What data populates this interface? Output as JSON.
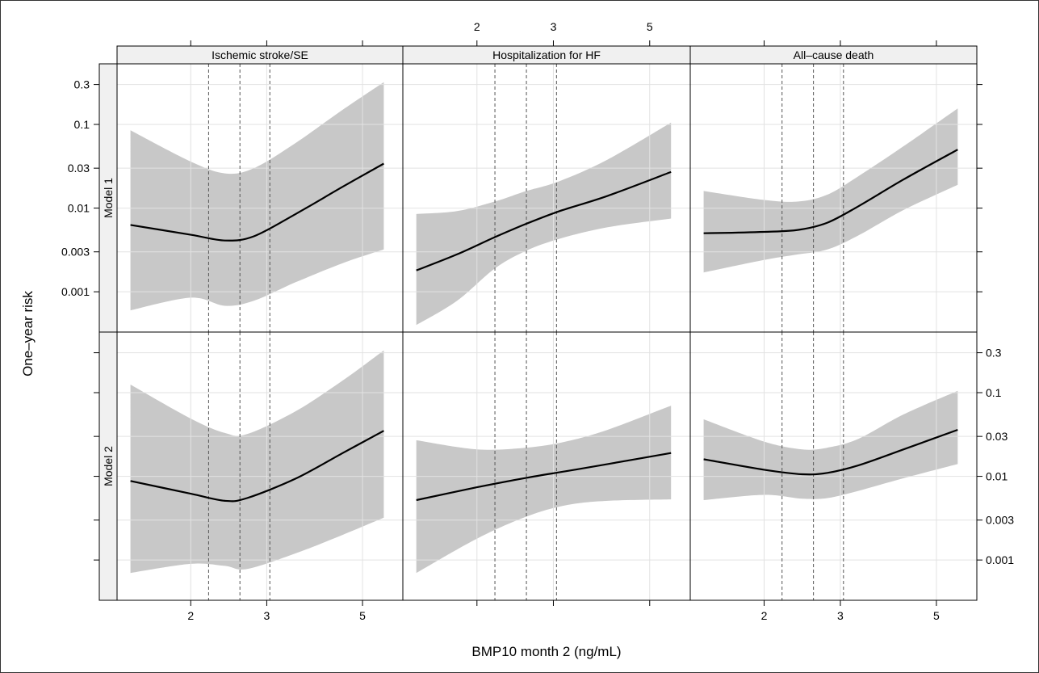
{
  "chart_data": {
    "type": "line",
    "xlabel": "BMP10 month 2 (ng/mL)",
    "ylabel": "One–year risk",
    "x_scale": "log",
    "y_scale": "log",
    "xlim": [
      1.35,
      6.2
    ],
    "ylim": [
      0.00033,
      0.53
    ],
    "x_ticks": [
      2,
      3,
      5
    ],
    "x_tick_labels": [
      "2",
      "3",
      "5"
    ],
    "y_ticks": [
      0.001,
      0.003,
      0.01,
      0.03,
      0.1,
      0.3
    ],
    "y_tick_labels": [
      "0.001",
      "0.003",
      "0.01",
      "0.03",
      "0.1",
      "0.3"
    ],
    "grid": true,
    "reference_lines_x": [
      2.2,
      2.6,
      3.05
    ],
    "column_labels": [
      "Ischemic stroke/SE",
      "Hospitalization for HF",
      "All–cause death"
    ],
    "row_labels": [
      "Model 1",
      "Model 2"
    ],
    "panels": [
      {
        "row": 0,
        "col": 0,
        "x": [
          1.45,
          2.0,
          2.4,
          2.8,
          3.5,
          4.5,
          5.6
        ],
        "y": [
          0.0063,
          0.0048,
          0.0041,
          0.0046,
          0.0085,
          0.018,
          0.034
        ],
        "lower": [
          0.0006,
          0.00085,
          0.00068,
          0.00078,
          0.0013,
          0.0022,
          0.0032
        ],
        "upper": [
          0.085,
          0.036,
          0.026,
          0.03,
          0.06,
          0.15,
          0.32
        ]
      },
      {
        "row": 0,
        "col": 1,
        "x": [
          1.45,
          1.8,
          2.2,
          2.6,
          3.1,
          4.0,
          5.6
        ],
        "y": [
          0.0018,
          0.0028,
          0.0045,
          0.0065,
          0.0092,
          0.014,
          0.027
        ],
        "lower": [
          0.0004,
          0.00078,
          0.0019,
          0.0031,
          0.0043,
          0.0059,
          0.0075
        ],
        "upper": [
          0.0085,
          0.0092,
          0.012,
          0.016,
          0.021,
          0.038,
          0.105
        ]
      },
      {
        "row": 0,
        "col": 2,
        "x": [
          1.45,
          2.0,
          2.4,
          2.8,
          3.3,
          4.2,
          5.6
        ],
        "y": [
          0.005,
          0.0052,
          0.0055,
          0.0067,
          0.0105,
          0.022,
          0.05
        ],
        "lower": [
          0.0017,
          0.0024,
          0.0028,
          0.0032,
          0.0047,
          0.0095,
          0.019
        ],
        "upper": [
          0.016,
          0.0125,
          0.012,
          0.0145,
          0.024,
          0.055,
          0.155
        ]
      },
      {
        "row": 1,
        "col": 0,
        "x": [
          1.45,
          2.0,
          2.4,
          2.7,
          3.5,
          4.5,
          5.6
        ],
        "y": [
          0.0088,
          0.0062,
          0.0051,
          0.0055,
          0.0094,
          0.019,
          0.035
        ],
        "lower": [
          0.0007,
          0.0009,
          0.00085,
          0.00078,
          0.0012,
          0.002,
          0.0032
        ],
        "upper": [
          0.125,
          0.049,
          0.033,
          0.032,
          0.06,
          0.14,
          0.32
        ]
      },
      {
        "row": 1,
        "col": 1,
        "x": [
          1.45,
          2.0,
          2.6,
          3.2,
          4.0,
          5.6
        ],
        "y": [
          0.0052,
          0.0074,
          0.0096,
          0.0115,
          0.014,
          0.019
        ],
        "lower": [
          0.0007,
          0.0018,
          0.0033,
          0.0045,
          0.0051,
          0.0053
        ],
        "upper": [
          0.027,
          0.021,
          0.022,
          0.026,
          0.036,
          0.07
        ]
      },
      {
        "row": 1,
        "col": 2,
        "x": [
          1.45,
          2.0,
          2.45,
          2.8,
          3.3,
          4.2,
          5.6
        ],
        "y": [
          0.016,
          0.012,
          0.0106,
          0.011,
          0.0135,
          0.021,
          0.036
        ],
        "lower": [
          0.0052,
          0.006,
          0.0054,
          0.0055,
          0.0067,
          0.0095,
          0.014
        ],
        "upper": [
          0.048,
          0.026,
          0.021,
          0.022,
          0.028,
          0.055,
          0.105
        ]
      }
    ]
  },
  "colors": {
    "band": "#c8c8c8",
    "line": "#000000",
    "grid": "#e2e2e2",
    "strip_bg": "#f0f0f0",
    "border": "#000000",
    "refline": "#555555"
  }
}
